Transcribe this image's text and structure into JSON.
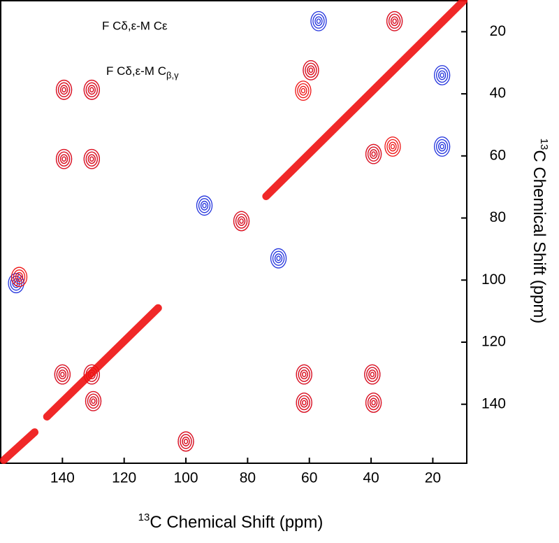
{
  "chart_data": {
    "type": "scatter",
    "x_label": {
      "sup": "13",
      "text": "C Chemical Shift (ppm)"
    },
    "y_label": {
      "sup": "13",
      "text": "C Chemical Shift (ppm)"
    },
    "annotations": [
      {
        "text": "F Cδ,ε-M Cε"
      },
      {
        "text": "F Cδ,ε-M C",
        "sub": "β,γ"
      }
    ],
    "xlim": [
      160,
      9
    ],
    "ylim": [
      10,
      159
    ],
    "xticks": [
      140,
      120,
      100,
      80,
      60,
      40,
      20
    ],
    "yticks": [
      20,
      40,
      60,
      80,
      100,
      120,
      140
    ],
    "series": [
      {
        "style": "blob",
        "color": "#2233dd",
        "x": [
          139.5,
          130.5,
          139.5,
          130.5,
          140,
          130.5,
          130,
          61.7,
          61.7,
          39.6,
          39.2,
          59.5,
          39.2,
          32.4,
          57,
          17,
          17,
          100,
          94,
          82,
          70,
          155
        ],
        "y": [
          38.7,
          38.7,
          61,
          61,
          130.4,
          130.4,
          139,
          130.4,
          139.5,
          130.4,
          139.5,
          32.4,
          59.4,
          16.6,
          16.6,
          34,
          57,
          152,
          76,
          81,
          93,
          101
        ]
      },
      {
        "style": "blob",
        "color": "#ee1111",
        "x": [
          139.5,
          130.5,
          139.5,
          130.5,
          140,
          130.5,
          130,
          61.7,
          61.7,
          39.6,
          39.2,
          59.5,
          62,
          39.2,
          33,
          32.4,
          100,
          154,
          82
        ],
        "y": [
          38.7,
          38.7,
          61,
          61,
          130.4,
          130.4,
          139,
          130.4,
          139.5,
          130.4,
          139.5,
          32.4,
          39,
          59.4,
          57,
          16.6,
          152,
          99,
          81
        ]
      },
      {
        "style": "line",
        "color": "#ee1111",
        "x": [
          159,
          149,
          null,
          145,
          109,
          null,
          74,
          10
        ],
        "y": [
          158,
          149,
          null,
          144,
          109,
          null,
          73,
          10
        ]
      }
    ]
  }
}
